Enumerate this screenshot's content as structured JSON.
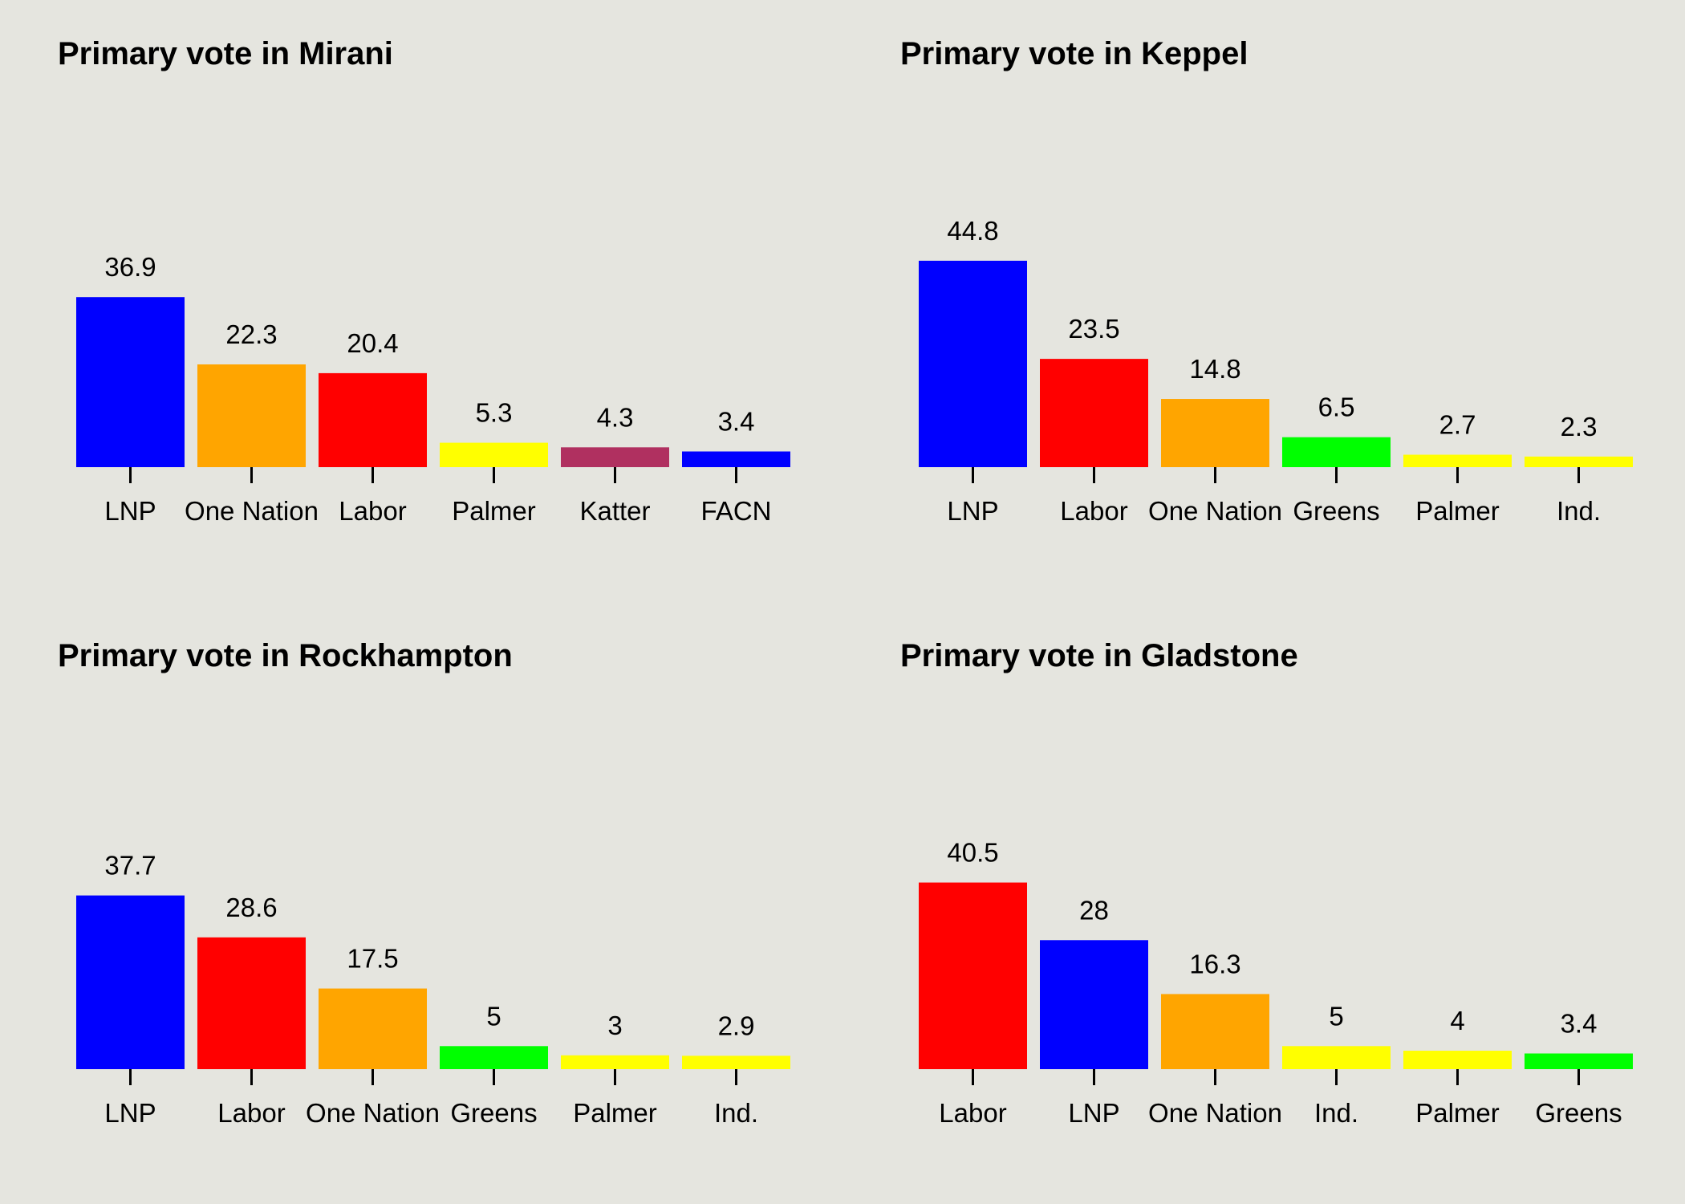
{
  "background_color": "#e5e5df",
  "chart_data": [
    {
      "type": "bar",
      "title": "Primary vote in Mirani",
      "xlabel": "",
      "ylabel": "",
      "ylim": [
        0,
        45
      ],
      "grid": false,
      "categories": [
        "LNP",
        "One Nation",
        "Labor",
        "Palmer",
        "Katter",
        "FACN"
      ],
      "values": [
        36.9,
        22.3,
        20.4,
        5.3,
        4.3,
        3.4
      ],
      "colors": [
        "#0000ff",
        "#ffa500",
        "#ff0000",
        "#ffff00",
        "#b03060",
        "#0000ff"
      ]
    },
    {
      "type": "bar",
      "title": "Primary vote in Keppel",
      "xlabel": "",
      "ylabel": "",
      "ylim": [
        0,
        45
      ],
      "grid": false,
      "categories": [
        "LNP",
        "Labor",
        "One Nation",
        "Greens",
        "Palmer",
        "Ind."
      ],
      "values": [
        44.8,
        23.5,
        14.8,
        6.5,
        2.7,
        2.3
      ],
      "colors": [
        "#0000ff",
        "#ff0000",
        "#ffa500",
        "#00ff00",
        "#ffff00",
        "#ffff00"
      ]
    },
    {
      "type": "bar",
      "title": "Primary vote in Rockhampton",
      "xlabel": "",
      "ylabel": "",
      "ylim": [
        0,
        45
      ],
      "grid": false,
      "categories": [
        "LNP",
        "Labor",
        "One Nation",
        "Greens",
        "Palmer",
        "Ind."
      ],
      "values": [
        37.7,
        28.6,
        17.5,
        5,
        3,
        2.9
      ],
      "colors": [
        "#0000ff",
        "#ff0000",
        "#ffa500",
        "#00ff00",
        "#ffff00",
        "#ffff00"
      ]
    },
    {
      "type": "bar",
      "title": "Primary vote in Gladstone",
      "xlabel": "",
      "ylabel": "",
      "ylim": [
        0,
        45
      ],
      "grid": false,
      "categories": [
        "Labor",
        "LNP",
        "One Nation",
        "Ind.",
        "Palmer",
        "Greens"
      ],
      "values": [
        40.5,
        28,
        16.3,
        5,
        4,
        3.4
      ],
      "colors": [
        "#ff0000",
        "#0000ff",
        "#ffa500",
        "#ffff00",
        "#ffff00",
        "#00ff00"
      ]
    }
  ]
}
